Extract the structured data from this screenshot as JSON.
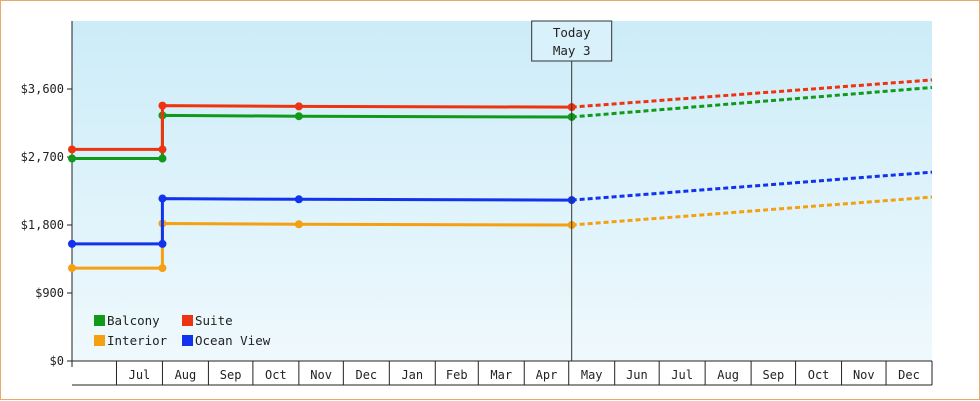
{
  "chart_data": {
    "type": "line",
    "title": "",
    "xlabel": "",
    "ylabel": "",
    "ylim": [
      0,
      4500
    ],
    "y_ticks": [
      0,
      900,
      1800,
      2700,
      3600
    ],
    "y_tick_labels": [
      "$0",
      "$900",
      "$1,800",
      "$2,700",
      "$3,600"
    ],
    "x_domain": [
      "2019-06-01",
      "2021-01-01"
    ],
    "month_labels": [
      {
        "date": "2019-07",
        "label": "Jul"
      },
      {
        "date": "2019-08",
        "label": "Aug"
      },
      {
        "date": "2019-09",
        "label": "Sep"
      },
      {
        "date": "2019-10",
        "label": "Oct"
      },
      {
        "date": "2019-11",
        "label": "Nov"
      },
      {
        "date": "2019-12",
        "label": "Dec"
      },
      {
        "date": "2020-01",
        "label": "Jan"
      },
      {
        "date": "2020-02",
        "label": "Feb"
      },
      {
        "date": "2020-03",
        "label": "Mar"
      },
      {
        "date": "2020-04",
        "label": "Apr"
      },
      {
        "date": "2020-05",
        "label": "May"
      },
      {
        "date": "2020-06",
        "label": "Jun"
      },
      {
        "date": "2020-07",
        "label": "Jul"
      },
      {
        "date": "2020-08",
        "label": "Aug"
      },
      {
        "date": "2020-09",
        "label": "Sep"
      },
      {
        "date": "2020-10",
        "label": "Oct"
      },
      {
        "date": "2020-11",
        "label": "Nov"
      },
      {
        "date": "2020-12",
        "label": "Dec"
      }
    ],
    "today": {
      "date": "2020-05-03",
      "line1": "Today",
      "line2": "May 3"
    },
    "grid": false,
    "legend_position": "bottom-left",
    "series": [
      {
        "name": "Balcony",
        "color": "#11991a",
        "points": [
          {
            "date": "2019-06-01",
            "value": 2680
          },
          {
            "date": "2019-08-01",
            "value": 2680
          },
          {
            "date": "2019-08-01",
            "value": 3250
          },
          {
            "date": "2019-11-01",
            "value": 3240
          },
          {
            "date": "2020-05-03",
            "value": 3230
          }
        ],
        "projection": {
          "date": "2021-01-01",
          "value": 3620
        }
      },
      {
        "name": "Suite",
        "color": "#ee3311",
        "points": [
          {
            "date": "2019-06-01",
            "value": 2800
          },
          {
            "date": "2019-08-01",
            "value": 2800
          },
          {
            "date": "2019-08-01",
            "value": 3380
          },
          {
            "date": "2019-11-01",
            "value": 3370
          },
          {
            "date": "2020-05-03",
            "value": 3360
          }
        ],
        "projection": {
          "date": "2021-01-01",
          "value": 3720
        }
      },
      {
        "name": "Interior",
        "color": "#f5a011",
        "points": [
          {
            "date": "2019-06-01",
            "value": 1230
          },
          {
            "date": "2019-08-01",
            "value": 1230
          },
          {
            "date": "2019-08-01",
            "value": 1820
          },
          {
            "date": "2019-11-01",
            "value": 1810
          },
          {
            "date": "2020-05-03",
            "value": 1800
          }
        ],
        "projection": {
          "date": "2021-01-01",
          "value": 2170
        }
      },
      {
        "name": "Ocean View",
        "color": "#1133ee",
        "points": [
          {
            "date": "2019-06-01",
            "value": 1550
          },
          {
            "date": "2019-08-01",
            "value": 1550
          },
          {
            "date": "2019-08-01",
            "value": 2150
          },
          {
            "date": "2019-11-01",
            "value": 2140
          },
          {
            "date": "2020-05-03",
            "value": 2130
          }
        ],
        "projection": {
          "date": "2021-01-01",
          "value": 2500
        }
      }
    ],
    "legend_order": [
      "Balcony",
      "Suite",
      "Interior",
      "Ocean View"
    ]
  }
}
